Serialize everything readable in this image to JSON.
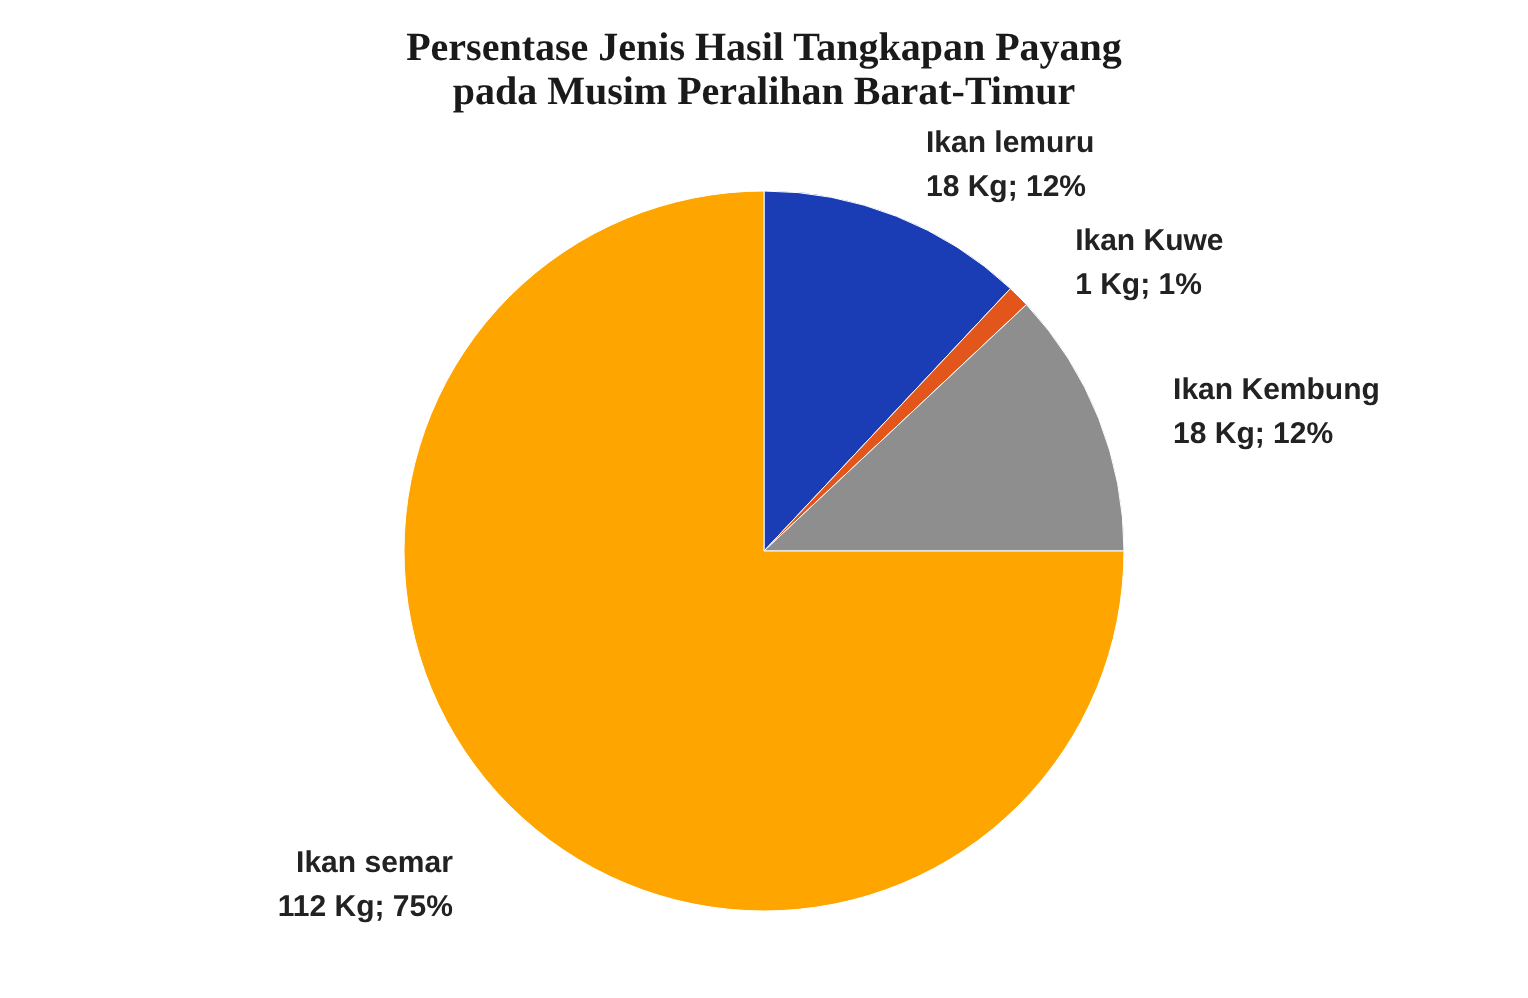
{
  "chart_data": {
    "type": "pie",
    "title": "Persentase Jenis Hasil Tangkapan Payang\npada Musim Peralihan Barat-Timur",
    "categories": [
      "Ikan  lemuru",
      "Ikan Kuwe",
      "Ikan Kembung",
      "Ikan semar"
    ],
    "values": [
      12,
      1,
      12,
      75
    ],
    "value_labels": [
      "18 Kg; 12%",
      "1 Kg; 1%",
      "18 Kg; 12%",
      "112 Kg; 75%"
    ],
    "colors": [
      "#1a3db5",
      "#e2561c",
      "#8e8e8e",
      "#ffa500"
    ],
    "legend": false
  }
}
